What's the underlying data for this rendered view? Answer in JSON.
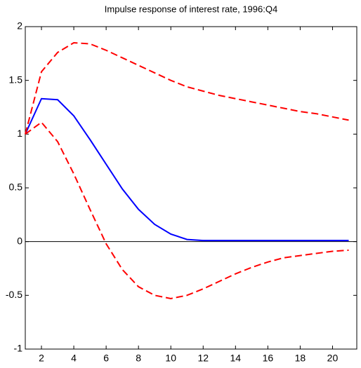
{
  "chart_data": {
    "type": "line",
    "title": "Impulse response of interest rate, 1996:Q4",
    "x": [
      1,
      2,
      3,
      4,
      5,
      6,
      7,
      8,
      9,
      10,
      11,
      12,
      13,
      14,
      15,
      16,
      17,
      18,
      19,
      20,
      21
    ],
    "series": [
      {
        "color": "#0000ff",
        "style": "solid",
        "values": [
          1.0,
          1.33,
          1.32,
          1.17,
          0.95,
          0.72,
          0.49,
          0.3,
          0.16,
          0.07,
          0.02,
          0.01,
          0.01,
          0.01,
          0.01,
          0.01,
          0.01,
          0.01,
          0.01,
          0.01,
          0.01
        ]
      },
      {
        "color": "#ff0000",
        "style": "dashed",
        "values": [
          1.0,
          1.58,
          1.76,
          1.85,
          1.84,
          1.78,
          1.71,
          1.64,
          1.57,
          1.5,
          1.44,
          1.4,
          1.36,
          1.33,
          1.3,
          1.27,
          1.24,
          1.21,
          1.19,
          1.16,
          1.13
        ]
      },
      {
        "color": "#ff0000",
        "style": "dashed",
        "values": [
          1.0,
          1.11,
          0.93,
          0.63,
          0.3,
          -0.02,
          -0.26,
          -0.42,
          -0.5,
          -0.53,
          -0.5,
          -0.44,
          -0.37,
          -0.3,
          -0.24,
          -0.19,
          -0.15,
          -0.13,
          -0.11,
          -0.09,
          -0.08
        ]
      }
    ],
    "reference_line": 0,
    "xlim": [
      1,
      21.5
    ],
    "xticks": [
      2,
      4,
      6,
      8,
      10,
      12,
      14,
      16,
      18,
      20
    ],
    "ylim": [
      -1,
      2
    ],
    "yticks": [
      -1,
      -0.5,
      0,
      0.5,
      1,
      1.5,
      2
    ],
    "grid": false
  }
}
